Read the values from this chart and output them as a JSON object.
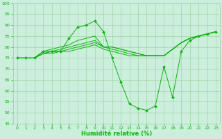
{
  "background_color": "#cceedd",
  "grid_color": "#99cc99",
  "line_color": "#00bb00",
  "xlabel": "Humidité relative (%)",
  "ylim": [
    45,
    100
  ],
  "xlim": [
    -0.5,
    23.5
  ],
  "yticks": [
    45,
    50,
    55,
    60,
    65,
    70,
    75,
    80,
    85,
    90,
    95,
    100
  ],
  "xticks": [
    0,
    1,
    2,
    3,
    4,
    5,
    6,
    7,
    8,
    9,
    10,
    11,
    12,
    13,
    14,
    15,
    16,
    17,
    18,
    19,
    20,
    21,
    22,
    23
  ],
  "series_with_markers": [
    75,
    75,
    75,
    78,
    78,
    78,
    84,
    89,
    90,
    92,
    87,
    75,
    64,
    54,
    52,
    51,
    53,
    71,
    57,
    78,
    83,
    85,
    86,
    87
  ],
  "series_smooth": [
    [
      75,
      75,
      75,
      78,
      79,
      80,
      81,
      83,
      84,
      85,
      80,
      80,
      79,
      78,
      77,
      76,
      76,
      76,
      79,
      82,
      84,
      85,
      86,
      87
    ],
    [
      75,
      75,
      75,
      77,
      78,
      79,
      80,
      81,
      82,
      83,
      80,
      80,
      79,
      78,
      77,
      76,
      76,
      76,
      79,
      82,
      84,
      85,
      86,
      87
    ],
    [
      75,
      75,
      75,
      77,
      78,
      78,
      79,
      80,
      81,
      82,
      80,
      79,
      78,
      77,
      76,
      76,
      76,
      76,
      79,
      82,
      84,
      85,
      86,
      87
    ],
    [
      75,
      75,
      75,
      77,
      77,
      78,
      78,
      79,
      80,
      81,
      79,
      78,
      77,
      76,
      76,
      76,
      76,
      76,
      79,
      82,
      84,
      85,
      86,
      87
    ]
  ],
  "figsize": [
    3.2,
    2.0
  ],
  "dpi": 100,
  "xlabel_fontsize": 6,
  "tick_fontsize": 4.5,
  "linewidth": 0.7,
  "markersize": 2.0
}
